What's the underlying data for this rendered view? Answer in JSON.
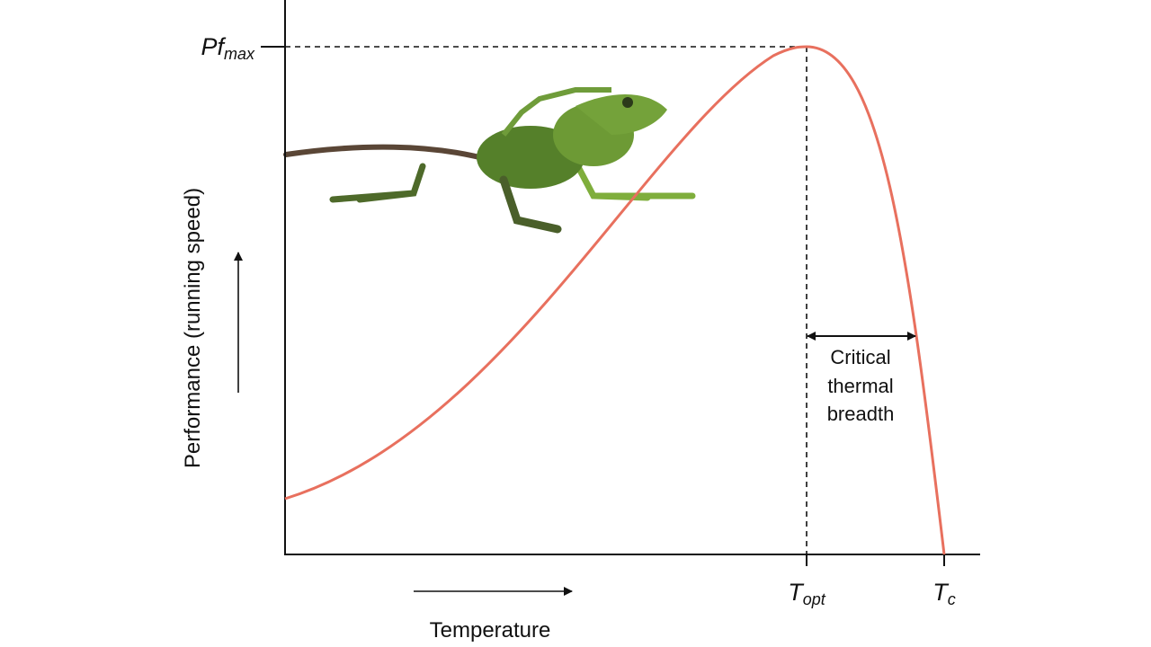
{
  "y_axis": {
    "label": "Performance (running speed)",
    "peak_label": {
      "main": "Pf",
      "sub": "max"
    }
  },
  "x_axis": {
    "label": "Temperature",
    "markers": [
      {
        "main": "T",
        "sub": "opt"
      },
      {
        "main": "T",
        "sub": "c"
      }
    ]
  },
  "annotation": {
    "lines": [
      "Critical",
      "thermal",
      "breadth"
    ]
  }
}
